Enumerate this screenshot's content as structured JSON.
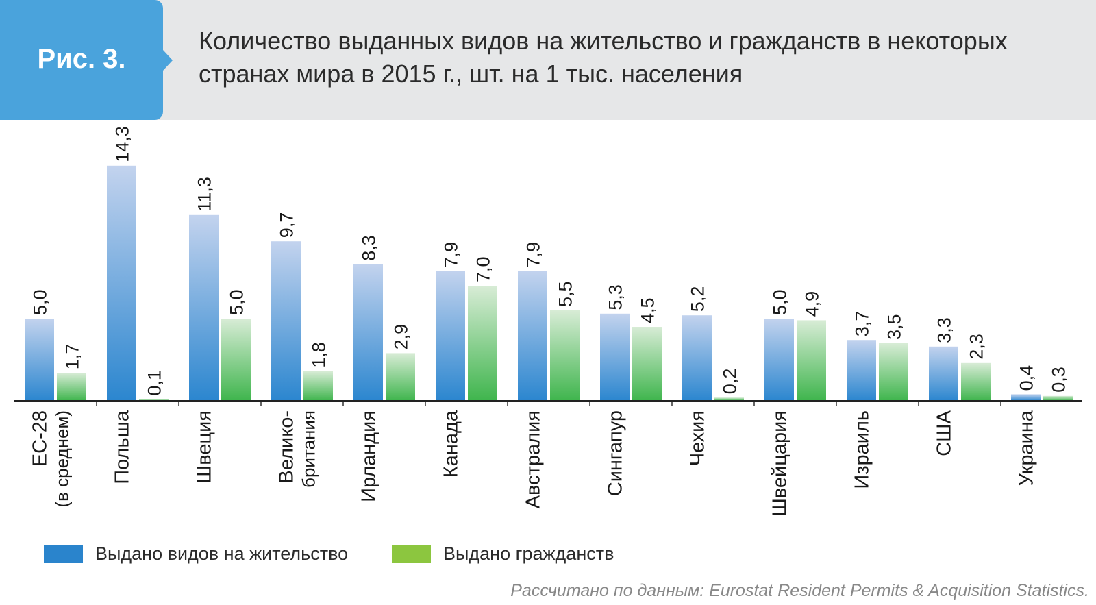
{
  "figure_label": "Рис. 3.",
  "title_lines": [
    "Количество выданных видов на жительство и гражданств в некоторых",
    "странах мира в 2015 г., шт. на 1 тыс. населения"
  ],
  "source": "Рассчитано по данным: Eurostat Resident Permits & Acquisition Statistics.",
  "colors": {
    "header_bg": "#e6e7e8",
    "badge": "#4aa3dc",
    "blue_top": "#c3d3ee",
    "blue_bottom": "#2b86cf",
    "green_top": "#d8ecd6",
    "green_bottom": "#3fb54d",
    "legend_blue": "#2a84cc",
    "legend_green": "#8cc63f"
  },
  "chart_data": {
    "type": "bar",
    "title": "Количество выданных видов на жительство и гражданств в некоторых странах мира в 2015 г., шт. на 1 тыс. населения",
    "categories": [
      [
        "ЕС-28",
        "(в среднем)"
      ],
      [
        "Польша"
      ],
      [
        "Швеция"
      ],
      [
        "Велико-",
        "британия"
      ],
      [
        "Ирландия"
      ],
      [
        "Канада"
      ],
      [
        "Австралия"
      ],
      [
        "Сингапур"
      ],
      [
        "Чехия"
      ],
      [
        "Швейцария"
      ],
      [
        "Израиль"
      ],
      [
        "США"
      ],
      [
        "Украина"
      ]
    ],
    "series": [
      {
        "name": "Выдано видов на жительство",
        "values": [
          5.0,
          14.3,
          11.3,
          9.7,
          8.3,
          7.9,
          7.9,
          5.3,
          5.2,
          5.0,
          3.7,
          3.3,
          0.4
        ],
        "labels": [
          "5,0",
          "14,3",
          "11,3",
          "9,7",
          "8,3",
          "7,9",
          "7,9",
          "5,3",
          "5,2",
          "5,0",
          "3,7",
          "3,3",
          "0,4"
        ]
      },
      {
        "name": "Выдано гражданств",
        "values": [
          1.7,
          0.1,
          5.0,
          1.8,
          2.9,
          7.0,
          5.5,
          4.5,
          0.2,
          4.9,
          3.5,
          2.3,
          0.3
        ],
        "labels": [
          "1,7",
          "0,1",
          "5,0",
          "1,8",
          "2,9",
          "7,0",
          "5,5",
          "4,5",
          "0,2",
          "4,9",
          "3,5",
          "2,3",
          "0,3"
        ]
      }
    ],
    "xlabel": "",
    "ylabel": "",
    "ylim": [
      0,
      15
    ],
    "grid": false,
    "legend": "bottom-left"
  }
}
